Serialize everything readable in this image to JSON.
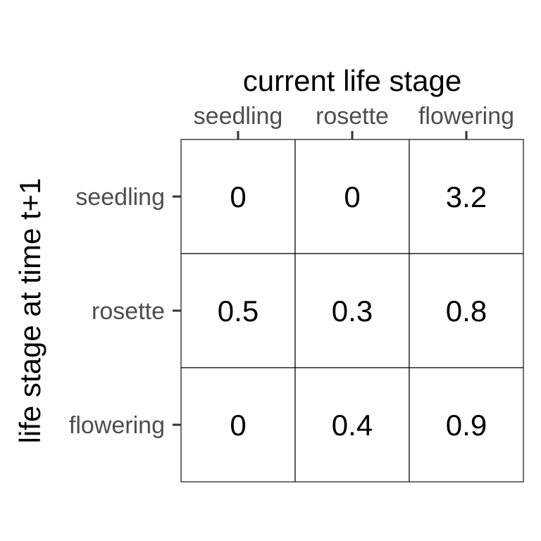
{
  "chart_data": {
    "type": "table",
    "title": "current life stage",
    "ylabel": "life stage at time t+1",
    "x_categories": [
      "seedling",
      "rosette",
      "flowering"
    ],
    "y_categories": [
      "seedling",
      "rosette",
      "flowering"
    ],
    "values": [
      [
        "0",
        "0",
        "3.2"
      ],
      [
        "0.5",
        "0.3",
        "0.8"
      ],
      [
        "0",
        "0.4",
        "0.9"
      ]
    ]
  }
}
